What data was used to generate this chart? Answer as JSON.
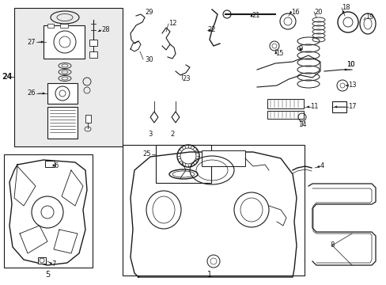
{
  "bg_color": "#ffffff",
  "line_color": "#1a1a1a",
  "box_bg": "#ebebeb",
  "fig_width": 4.89,
  "fig_height": 3.6,
  "dpi": 100,
  "label_fs": 6.0,
  "bold_fs": 7.0
}
